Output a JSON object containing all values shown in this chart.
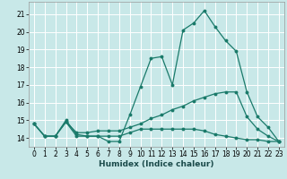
{
  "background_color": "#c8e8e8",
  "grid_color": "#ffffff",
  "line_color": "#1a7a6a",
  "xlabel": "Humidex (Indice chaleur)",
  "xlim": [
    -0.5,
    23.5
  ],
  "ylim": [
    13.5,
    21.7
  ],
  "yticks": [
    14,
    15,
    16,
    17,
    18,
    19,
    20,
    21
  ],
  "xticks": [
    0,
    1,
    2,
    3,
    4,
    5,
    6,
    7,
    8,
    9,
    10,
    11,
    12,
    13,
    14,
    15,
    16,
    17,
    18,
    19,
    20,
    21,
    22,
    23
  ],
  "series": [
    {
      "x": [
        0,
        1,
        2,
        3,
        4,
        5,
        6,
        7,
        8,
        9,
        10,
        11,
        12,
        13,
        14,
        15,
        16,
        17,
        18,
        19,
        20,
        21,
        22,
        23
      ],
      "y": [
        14.8,
        14.1,
        14.1,
        15.0,
        14.2,
        14.1,
        14.1,
        13.8,
        13.8,
        15.3,
        16.9,
        18.5,
        18.6,
        17.0,
        20.1,
        20.5,
        21.2,
        20.3,
        19.5,
        18.9,
        16.6,
        15.2,
        14.6,
        13.8
      ]
    },
    {
      "x": [
        0,
        1,
        2,
        3,
        4,
        5,
        6,
        7,
        8,
        9,
        10,
        11,
        12,
        13,
        14,
        15,
        16,
        17,
        18,
        19,
        20,
        21,
        22,
        23
      ],
      "y": [
        14.8,
        14.1,
        14.1,
        14.9,
        14.1,
        14.1,
        14.1,
        14.1,
        14.1,
        14.3,
        14.5,
        14.5,
        14.5,
        14.5,
        14.5,
        14.5,
        14.4,
        14.2,
        14.1,
        14.0,
        13.9,
        13.9,
        13.8,
        13.8
      ]
    },
    {
      "x": [
        0,
        1,
        2,
        3,
        4,
        5,
        6,
        7,
        8,
        9,
        10,
        11,
        12,
        13,
        14,
        15,
        16,
        17,
        18,
        19,
        20,
        21,
        22,
        23
      ],
      "y": [
        14.8,
        14.1,
        14.1,
        14.9,
        14.3,
        14.3,
        14.4,
        14.4,
        14.4,
        14.6,
        14.8,
        15.1,
        15.3,
        15.6,
        15.8,
        16.1,
        16.3,
        16.5,
        16.6,
        16.6,
        15.2,
        14.5,
        14.1,
        13.8
      ]
    }
  ]
}
